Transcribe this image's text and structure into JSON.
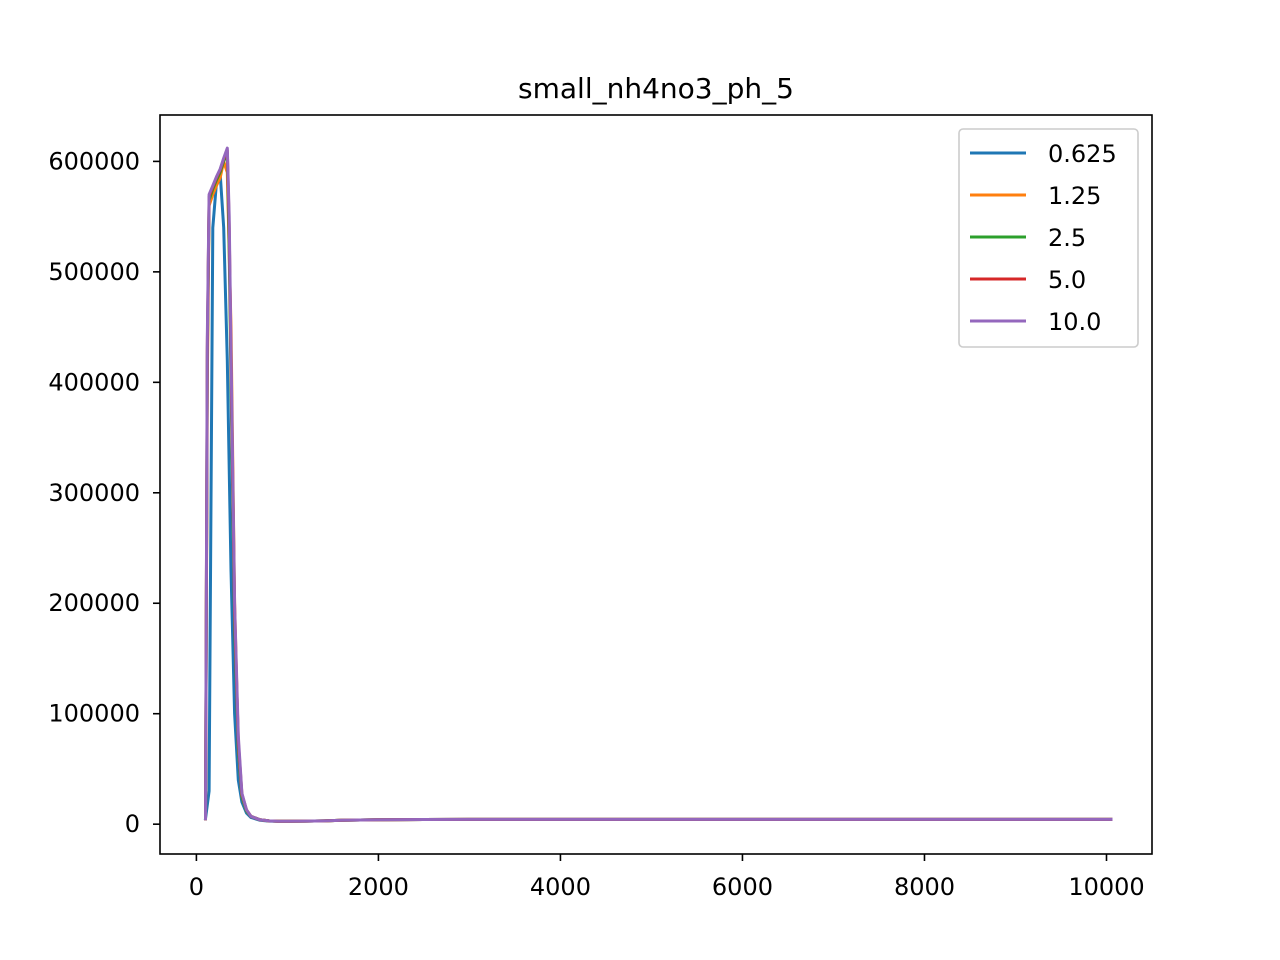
{
  "chart_data": {
    "type": "line",
    "title": "small_nh4no3_ph_5",
    "xlabel": "",
    "ylabel": "",
    "xlim": [
      -400,
      10500
    ],
    "ylim": [
      -27000,
      642000
    ],
    "xticks": [
      0,
      2000,
      4000,
      6000,
      8000,
      10000
    ],
    "xtick_labels": [
      "0",
      "2000",
      "4000",
      "6000",
      "8000",
      "10000"
    ],
    "yticks": [
      0,
      100000,
      200000,
      300000,
      400000,
      500000,
      600000
    ],
    "ytick_labels": [
      "0",
      "100000",
      "200000",
      "300000",
      "400000",
      "500000",
      "600000"
    ],
    "grid": false,
    "legend_position": "top-right",
    "series": [
      {
        "name": "0.625",
        "color": "#1f77b4",
        "x": [
          100,
          140,
          180,
          220,
          260,
          300,
          340,
          380,
          420,
          460,
          500,
          550,
          600,
          700,
          800,
          900,
          1000,
          1200,
          1400,
          1600,
          2000,
          2500,
          3000,
          4000,
          5000,
          6000,
          7000,
          8000,
          9000,
          10000,
          10050
        ],
        "y": [
          5000,
          30000,
          540000,
          580000,
          590000,
          540000,
          420000,
          230000,
          100000,
          40000,
          20000,
          10000,
          6000,
          3500,
          2800,
          2600,
          2700,
          2800,
          3000,
          3500,
          4000,
          4200,
          4300,
          4300,
          4300,
          4300,
          4300,
          4300,
          4300,
          4300,
          4300
        ]
      },
      {
        "name": "1.25",
        "color": "#ff7f0e",
        "x": [
          100,
          120,
          140,
          180,
          220,
          260,
          300,
          340,
          380,
          420,
          460,
          500,
          550,
          600,
          700,
          800,
          900,
          1000,
          1200,
          1400,
          1600,
          2000,
          2500,
          3000,
          4000,
          5000,
          6000,
          7000,
          8000,
          9000,
          10000,
          10050
        ],
        "y": [
          5000,
          400000,
          560000,
          570000,
          578000,
          585000,
          600000,
          590000,
          450000,
          200000,
          70000,
          25000,
          12000,
          7000,
          4000,
          3000,
          2700,
          2700,
          2800,
          3000,
          3500,
          4000,
          4200,
          4300,
          4300,
          4300,
          4300,
          4300,
          4300,
          4300,
          4300,
          4300
        ]
      },
      {
        "name": "2.5",
        "color": "#2ca02c",
        "x": [
          100,
          120,
          140,
          180,
          220,
          260,
          300,
          340,
          360,
          380,
          420,
          460,
          500,
          550,
          600,
          700,
          800,
          900,
          1000,
          1200,
          1400,
          1600,
          2000,
          2500,
          3000,
          4000,
          5000,
          6000,
          7000,
          8000,
          9000,
          10000,
          10050
        ],
        "y": [
          5000,
          420000,
          565000,
          575000,
          583000,
          590000,
          600000,
          608000,
          520000,
          400000,
          180000,
          70000,
          25000,
          12000,
          7000,
          4000,
          3000,
          2700,
          2700,
          2800,
          3000,
          3500,
          4000,
          4200,
          4300,
          4300,
          4300,
          4300,
          4300,
          4300,
          4300,
          4300,
          4300
        ]
      },
      {
        "name": "5.0",
        "color": "#d62728",
        "x": [
          100,
          120,
          140,
          180,
          220,
          260,
          300,
          340,
          360,
          380,
          420,
          460,
          500,
          550,
          600,
          700,
          800,
          900,
          1000,
          1200,
          1400,
          1600,
          2000,
          2500,
          3000,
          4000,
          5000,
          6000,
          7000,
          8000,
          9000,
          10000,
          10050
        ],
        "y": [
          5000,
          430000,
          568000,
          577000,
          585000,
          592000,
          602000,
          610000,
          540000,
          420000,
          190000,
          75000,
          27000,
          13000,
          7000,
          4000,
          3000,
          2700,
          2700,
          2800,
          3000,
          3500,
          4000,
          4200,
          4300,
          4300,
          4300,
          4300,
          4300,
          4300,
          4300,
          4300,
          4300
        ]
      },
      {
        "name": "10.0",
        "color": "#9467bd",
        "x": [
          100,
          120,
          140,
          180,
          220,
          260,
          300,
          340,
          360,
          380,
          420,
          460,
          500,
          550,
          600,
          700,
          800,
          900,
          1000,
          1200,
          1400,
          1600,
          2000,
          2500,
          3000,
          4000,
          5000,
          6000,
          7000,
          8000,
          9000,
          10000,
          10050
        ],
        "y": [
          5000,
          440000,
          570000,
          578000,
          586000,
          593000,
          603000,
          612000,
          550000,
          430000,
          200000,
          80000,
          28000,
          13000,
          7000,
          4000,
          3000,
          2700,
          2700,
          2800,
          3000,
          3500,
          4000,
          4200,
          4300,
          4300,
          4300,
          4300,
          4300,
          4300,
          4300,
          4300,
          4300
        ]
      }
    ]
  }
}
